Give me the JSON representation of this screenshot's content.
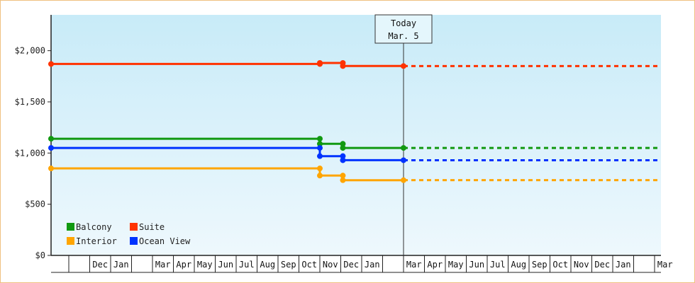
{
  "chart_data": {
    "type": "line",
    "subtype": "step",
    "y_axis": {
      "ticks": [
        "$0",
        "$500",
        "$1,000",
        "$1,500",
        "$2,000"
      ],
      "tick_values": [
        0,
        500,
        1000,
        1500,
        2000
      ],
      "ylim": [
        0,
        2350
      ]
    },
    "x_axis": {
      "slots": [
        "",
        "Dec",
        "Jan",
        "",
        "Mar",
        "Apr",
        "May",
        "Jun",
        "Jul",
        "Aug",
        "Sep",
        "Oct",
        "Nov",
        "Dec",
        "Jan",
        "",
        "Mar",
        "Apr",
        "May",
        "Jun",
        "Jul",
        "Aug",
        "Sep",
        "Oct",
        "Nov",
        "Dec",
        "Jan",
        "",
        "Mar"
      ]
    },
    "today": {
      "line1": "Today",
      "line2": "Mar. 5",
      "x": 16.0
    },
    "series": [
      {
        "name": "Suite",
        "color": "#ff3300",
        "points": [
          [
            0,
            1870
          ],
          [
            12.0,
            1870
          ],
          [
            12.0,
            1880
          ],
          [
            13.1,
            1880
          ],
          [
            13.1,
            1850
          ],
          [
            16.0,
            1850
          ]
        ],
        "projected_to": 29.0,
        "projected_value": 1850
      },
      {
        "name": "Balcony",
        "color": "#119911",
        "points": [
          [
            0,
            1140
          ],
          [
            12.0,
            1140
          ],
          [
            12.0,
            1090
          ],
          [
            13.1,
            1090
          ],
          [
            13.1,
            1050
          ],
          [
            16.0,
            1050
          ]
        ],
        "projected_to": 29.0,
        "projected_value": 1050
      },
      {
        "name": "Ocean View",
        "color": "#0033ff",
        "points": [
          [
            0,
            1050
          ],
          [
            12.0,
            1050
          ],
          [
            12.0,
            970
          ],
          [
            13.1,
            970
          ],
          [
            13.1,
            930
          ],
          [
            16.0,
            930
          ]
        ],
        "projected_to": 29.0,
        "projected_value": 930
      },
      {
        "name": "Interior",
        "color": "#ffa500",
        "points": [
          [
            0,
            850
          ],
          [
            12.0,
            850
          ],
          [
            12.0,
            780
          ],
          [
            13.1,
            780
          ],
          [
            13.1,
            735
          ],
          [
            16.0,
            735
          ]
        ],
        "projected_to": 29.0,
        "projected_value": 735
      }
    ],
    "legend": {
      "placement": "bottom-left",
      "rows": [
        [
          "Balcony",
          "Suite"
        ],
        [
          "Interior",
          "Ocean View"
        ]
      ]
    },
    "grid": false
  }
}
